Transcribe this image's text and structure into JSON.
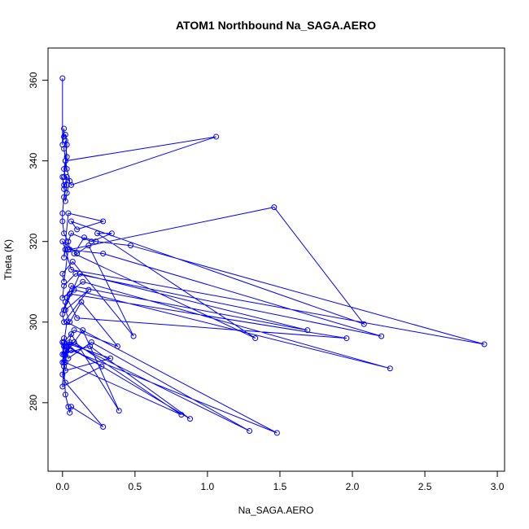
{
  "chart_data": {
    "type": "line",
    "title": "ATOM1 Northbound Na_SAGA.AERO",
    "xlabel": "Na_SAGA.AERO",
    "ylabel": "Theta (K)",
    "xlim": [
      -0.1,
      3.05
    ],
    "ylim": [
      263,
      368
    ],
    "x_ticks": [
      "0.0",
      "0.5",
      "1.0",
      "1.5",
      "2.0",
      "2.5",
      "3.0"
    ],
    "y_ticks": [
      "280",
      "300",
      "320",
      "340",
      "360"
    ],
    "series_color": "#0000ff",
    "point_marker": "open-circle",
    "grid": false,
    "legend": "none",
    "series": [
      {
        "x": [
          0.0,
          0.0,
          0.01,
          0.01,
          0.02,
          0.03,
          0.02,
          0.01,
          0.03,
          0.02,
          0.01,
          0.03,
          0.05,
          0.03,
          0.02,
          0.01,
          0.0,
          0.01,
          0.03,
          0.06,
          1.06,
          0.02,
          0.01,
          0.03,
          0.01,
          0.0,
          0.0,
          0.01,
          0.04,
          0.05,
          1.46,
          2.08,
          0.06,
          0.1,
          0.28,
          0.04,
          0.01,
          0.02,
          0.06,
          0.2,
          0.34,
          0.24,
          1.33,
          0.08,
          0.15,
          0.23,
          0.47,
          2.91,
          0.06,
          0.02,
          0.0,
          0.1,
          0.18,
          0.49,
          0.07,
          0.0,
          0.01,
          0.04,
          0.28,
          2.2,
          0.09,
          0.01,
          0.0,
          0.14,
          2.26,
          0.08,
          0.02,
          0.01,
          0.12,
          1.69,
          0.06,
          0.03,
          0.1,
          1.96,
          0.05,
          0.0,
          0.01,
          0.18,
          0.02,
          0.05,
          0.13,
          0.38,
          0.08,
          0.01,
          0.02,
          0.04,
          0.2,
          1.29,
          0.05,
          0.0,
          0.01,
          0.08,
          0.82,
          0.02,
          0.0,
          0.01,
          0.06,
          1.48,
          0.03,
          0.01,
          0.0,
          0.19,
          0.88,
          0.04,
          0.01,
          0.02,
          0.14,
          0.39,
          0.06,
          0.01,
          0.02,
          0.33,
          0.05,
          0.01,
          0.0,
          0.27,
          0.03,
          0.0,
          0.02,
          0.28,
          0.06,
          0.05,
          0.04,
          0.02,
          0.0
        ],
        "y": [
          360.5,
          344,
          348,
          346,
          346.5,
          344,
          340,
          336,
          341,
          345,
          343,
          338,
          335,
          332,
          330,
          334,
          336,
          333,
          336,
          334,
          346,
          340,
          338,
          334,
          331,
          327,
          325,
          322,
          320,
          318,
          328.5,
          299.5,
          325,
          323,
          325,
          327,
          316,
          318,
          322,
          320,
          322,
          322,
          296,
          317,
          321,
          320,
          319,
          294.5,
          313,
          318,
          320,
          317,
          319,
          296.5,
          315,
          312,
          310,
          318,
          317,
          296.5,
          312,
          309,
          306,
          310,
          288.5,
          308,
          305,
          303,
          312,
          298,
          309,
          306,
          301,
          296,
          307,
          302,
          300,
          308,
          303,
          300,
          305,
          294,
          298,
          295,
          293,
          291,
          295,
          273,
          295,
          290,
          294,
          295,
          277,
          290,
          295,
          292,
          293,
          272.5,
          300,
          295,
          292,
          294,
          276,
          294,
          296,
          292,
          298,
          278,
          297,
          290,
          288,
          291,
          294.5,
          289,
          284,
          289,
          294,
          287,
          285,
          274,
          279,
          277.5,
          279,
          282,
          295
        ]
      }
    ]
  }
}
